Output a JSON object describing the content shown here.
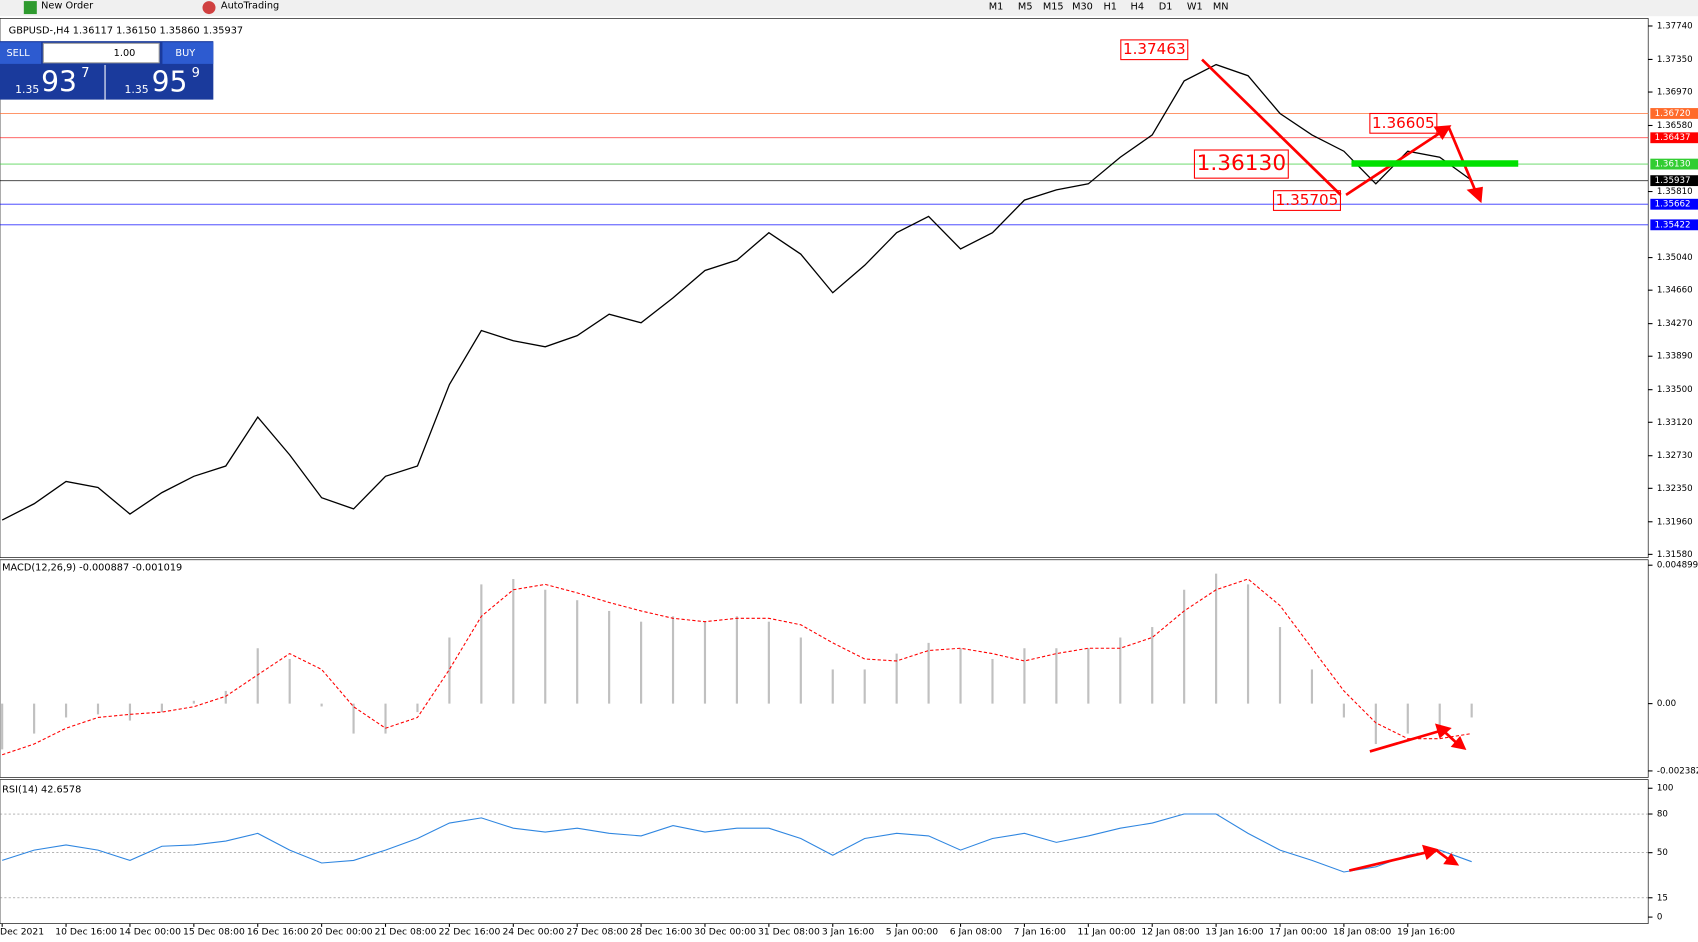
{
  "toolbar": {
    "new_order": "New Order",
    "auto_trading": "AutoTrading",
    "timeframes": [
      "M1",
      "M5",
      "M15",
      "M30",
      "H1",
      "H4",
      "D1",
      "W1",
      "MN"
    ]
  },
  "trade_panel": {
    "sell": "SELL",
    "buy": "BUY",
    "lot": "1.00",
    "bid": {
      "big": "1.35",
      "pips": "93",
      "frac": "7"
    },
    "ask": {
      "big": "1.35",
      "pips": "95",
      "frac": "9"
    }
  },
  "chart_data": [
    {
      "type": "line",
      "title": "GBPUSD-,H4  1.36117 1.36150 1.35860 1.35937",
      "color": "#000000",
      "categories": [
        "Dec 2021",
        null,
        "10 Dec 16:00",
        null,
        "14 Dec 00:00",
        null,
        "15 Dec 08:00",
        null,
        "16 Dec 16:00",
        null,
        "20 Dec 00:00",
        null,
        "21 Dec 08:00",
        null,
        "22 Dec 16:00",
        null,
        "24 Dec 00:00",
        null,
        "27 Dec 08:00",
        null,
        "28 Dec 16:00",
        null,
        "30 Dec 00:00",
        null,
        "31 Dec 08:00",
        null,
        "3 Jan 16:00",
        null,
        "5 Jan 00:00",
        null,
        "6 Jan 08:00",
        null,
        "7 Jan 16:00",
        null,
        "11 Jan 00:00",
        null,
        "12 Jan 08:00",
        null,
        "13 Jan 16:00",
        null,
        "17 Jan 00:00",
        null,
        "18 Jan 08:00",
        null,
        "19 Jan 16:00",
        null,
        null
      ],
      "values": [
        1.3198,
        1.3217,
        1.3243,
        1.3236,
        1.3205,
        1.323,
        1.3249,
        1.3261,
        1.3318,
        1.3274,
        1.3224,
        1.3211,
        1.3249,
        1.3261,
        1.3356,
        1.3419,
        1.3407,
        1.34,
        1.3413,
        1.3438,
        1.3428,
        1.3457,
        1.3489,
        1.3501,
        1.3533,
        1.3508,
        1.3463,
        1.3495,
        1.3533,
        1.3552,
        1.3514,
        1.3533,
        1.3571,
        1.3583,
        1.359,
        1.3621,
        1.3647,
        1.371,
        1.3729,
        1.3716,
        1.3672,
        1.3647,
        1.3628,
        1.359,
        1.3628,
        1.3621,
        1.3594
      ],
      "ylim": [
        1.3158,
        1.3774
      ],
      "yticks": [
        {
          "value": 1.3774,
          "label": "1.37740"
        },
        {
          "value": 1.3735,
          "label": "1.37350"
        },
        {
          "value": 1.3697,
          "label": "1.36970"
        },
        {
          "value": 1.3658,
          "label": "1.36580"
        },
        {
          "value": 1.3581,
          "label": "1.35810"
        },
        {
          "value": 1.3504,
          "label": "1.35040"
        },
        {
          "value": 1.3466,
          "label": "1.34660"
        },
        {
          "value": 1.3427,
          "label": "1.34270"
        },
        {
          "value": 1.3389,
          "label": "1.33890"
        },
        {
          "value": 1.335,
          "label": "1.33500"
        },
        {
          "value": 1.3312,
          "label": "1.33120"
        },
        {
          "value": 1.3273,
          "label": "1.32730"
        },
        {
          "value": 1.3235,
          "label": "1.32350"
        },
        {
          "value": 1.3196,
          "label": "1.31960"
        },
        {
          "value": 1.3158,
          "label": "1.31580"
        }
      ],
      "levels": [
        {
          "value": 1.3672,
          "label": "1.36720",
          "color": "#ff6a2a"
        },
        {
          "value": 1.36437,
          "label": "1.36437",
          "color": "#ff0000"
        },
        {
          "value": 1.3613,
          "label": "1.36130",
          "color": "#32cd32"
        },
        {
          "value": 1.35937,
          "label": "1.35937",
          "color": "#000000"
        },
        {
          "value": 1.35662,
          "label": "1.35662",
          "color": "#0000ff"
        },
        {
          "value": 1.35422,
          "label": "1.35422",
          "color": "#0000ff"
        }
      ],
      "annotations": [
        {
          "value": 1.37463,
          "label": "1.37463"
        },
        {
          "value": 1.36605,
          "label": "1.36605"
        },
        {
          "value": 1.3613,
          "label": "1.36130"
        },
        {
          "value": 1.35705,
          "label": "1.35705"
        }
      ]
    },
    {
      "type": "macd",
      "title": "MACD(12,26,9) -0.000887 -0.001019",
      "color": "#c0c0c0",
      "signal_color": "#ff0000",
      "values": [
        -0.00162,
        -0.00106,
        -0.00049,
        -0.00038,
        -0.0006,
        -0.0003,
        0.0001,
        0.00045,
        0.00196,
        0.00158,
        -0.0001,
        -0.00106,
        -0.00106,
        -0.0003,
        0.00234,
        0.00422,
        0.00441,
        0.00403,
        0.00366,
        0.00328,
        0.0029,
        0.00309,
        0.0029,
        0.00309,
        0.0029,
        0.00234,
        0.00121,
        0.00121,
        0.00177,
        0.00215,
        0.00196,
        0.00158,
        0.00196,
        0.00196,
        0.00196,
        0.00234,
        0.00271,
        0.00403,
        0.0046,
        0.00422,
        0.00271,
        0.00121,
        -0.00049,
        -0.00143,
        -0.00106,
        -0.00098,
        -0.00049
      ],
      "signal": [
        -0.00181,
        -0.00143,
        -0.00087,
        -0.00049,
        -0.00038,
        -0.0003,
        -0.00011,
        0.00026,
        0.00102,
        0.00177,
        0.00121,
        -0.00011,
        -0.00087,
        -0.00049,
        0.00121,
        0.00309,
        0.00403,
        0.00422,
        0.00392,
        0.00358,
        0.00328,
        0.00302,
        0.0029,
        0.00302,
        0.00302,
        0.00279,
        0.00215,
        0.00158,
        0.00151,
        0.00188,
        0.00196,
        0.00177,
        0.00151,
        0.00177,
        0.00196,
        0.00196,
        0.00234,
        0.00328,
        0.00403,
        0.00441,
        0.00347,
        0.00196,
        0.00045,
        -0.00068,
        -0.00124,
        -0.00124,
        -0.00106
      ],
      "ylim": [
        -0.002382,
        0.004899
      ],
      "yticks": [
        -0.002382,
        {
          "value": 0,
          "label": "0.00"
        },
        0.004899
      ]
    },
    {
      "type": "rsi",
      "title": "RSI(14) 42.6578",
      "color": "#2f86e0",
      "values": [
        44,
        52,
        56,
        52,
        44,
        55,
        56,
        59,
        65,
        52,
        42,
        44,
        52,
        61,
        73,
        77,
        69,
        66,
        69,
        65,
        63,
        71,
        66,
        69,
        69,
        61,
        48,
        61,
        65,
        63,
        52,
        61,
        65,
        58,
        63,
        69,
        73,
        80,
        80,
        65,
        52,
        44,
        35,
        39,
        48,
        52,
        43
      ],
      "ylim": [
        0,
        100
      ],
      "yticks": [
        0,
        15,
        50,
        80,
        100
      ],
      "levels": [
        15,
        50,
        80
      ]
    }
  ]
}
